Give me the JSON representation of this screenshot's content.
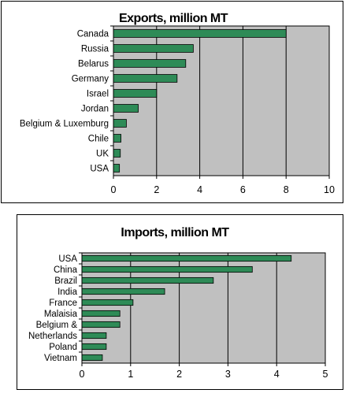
{
  "chart_data": [
    {
      "type": "bar",
      "orientation": "horizontal",
      "title": "Exports, million MT",
      "categories": [
        "Canada",
        "Russia",
        "Belarus",
        "Germany",
        "Israel",
        "Jordan",
        "Belgium & Luxemburg",
        "Chile",
        "UK",
        "USA"
      ],
      "values": [
        8.0,
        3.7,
        3.35,
        2.95,
        2.0,
        1.15,
        0.6,
        0.35,
        0.32,
        0.28
      ],
      "xlim": [
        0,
        10
      ],
      "xticks": [
        "0",
        "2",
        "4",
        "6",
        "8",
        "10"
      ],
      "grid": true,
      "colors": {
        "plot_bg": "#c0c0c0",
        "bar": "#2e8b57",
        "bar_edge": "#000000"
      }
    },
    {
      "type": "bar",
      "orientation": "horizontal",
      "title": "Imports, million MT",
      "categories": [
        "USA",
        "China",
        "Brazil",
        "India",
        "France",
        "Malaisia",
        "Belgium &",
        "Netherlands",
        "Poland",
        "Vietnam"
      ],
      "values": [
        4.3,
        3.5,
        2.7,
        1.7,
        1.05,
        0.78,
        0.78,
        0.5,
        0.5,
        0.42
      ],
      "xlim": [
        0,
        5
      ],
      "xticks": [
        "0",
        "1",
        "2",
        "3",
        "4",
        "5"
      ],
      "grid": true,
      "colors": {
        "plot_bg": "#c0c0c0",
        "bar": "#2e8b57",
        "bar_edge": "#000000"
      }
    }
  ]
}
